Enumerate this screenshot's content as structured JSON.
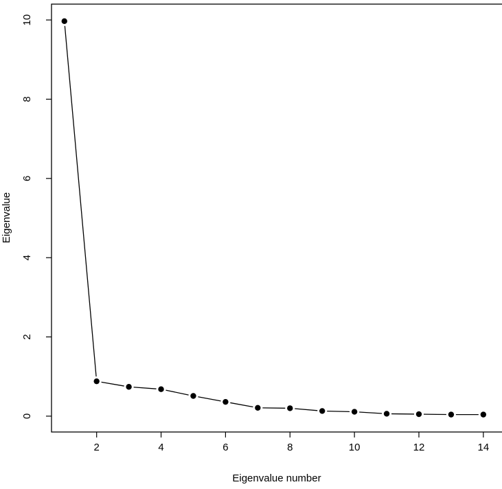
{
  "chart_data": {
    "type": "line",
    "title": "",
    "xlabel": "Eigenvalue number",
    "ylabel": "Eigenvalue",
    "xlim": [
      0.6,
      14.6
    ],
    "ylim": [
      -0.4,
      10.4
    ],
    "x_ticks": [
      2,
      4,
      6,
      8,
      10,
      12,
      14
    ],
    "y_ticks": [
      0,
      2,
      4,
      6,
      8,
      10
    ],
    "grid": false,
    "legend": "none",
    "marker": "filled-circle",
    "line_color": "#000000",
    "x": [
      1,
      2,
      3,
      4,
      5,
      6,
      7,
      8,
      9,
      10,
      11,
      12,
      13,
      14
    ],
    "y": [
      9.97,
      0.88,
      0.74,
      0.68,
      0.51,
      0.36,
      0.21,
      0.2,
      0.13,
      0.11,
      0.06,
      0.05,
      0.04,
      0.04
    ]
  }
}
